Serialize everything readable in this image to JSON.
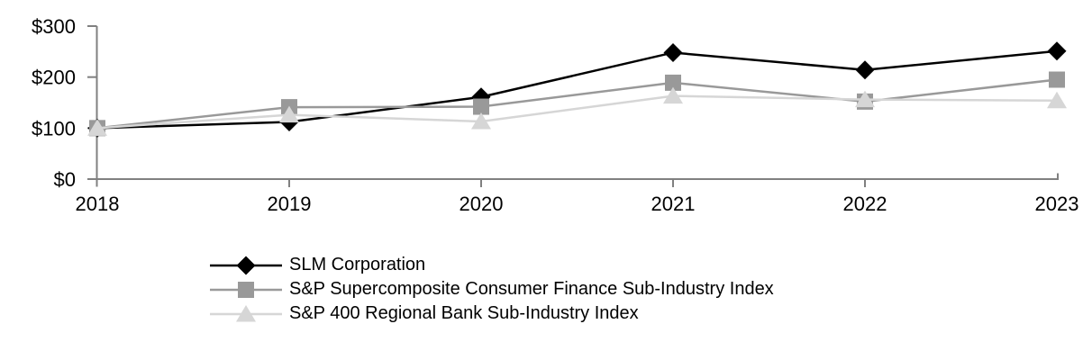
{
  "chart_data": {
    "type": "line",
    "title": "",
    "categories": [
      "2018",
      "2019",
      "2020",
      "2021",
      "2022",
      "2023"
    ],
    "series": [
      {
        "name": "SLM Corporation",
        "marker": "diamond",
        "color": "#000000",
        "values": [
          100,
          112,
          161,
          248,
          214,
          251
        ]
      },
      {
        "name": "S&P Supercomposite Consumer Finance Sub-Industry Index",
        "marker": "square",
        "color": "#999999",
        "values": [
          100,
          141,
          142,
          189,
          152,
          195
        ]
      },
      {
        "name": "S&P 400 Regional Bank Sub-Industry Index",
        "marker": "triangle",
        "color": "#d6d6d6",
        "values": [
          100,
          126,
          113,
          163,
          156,
          154
        ]
      }
    ],
    "y_axis": {
      "range": [
        0,
        300
      ],
      "tick_values": [
        0,
        100,
        200,
        300
      ],
      "tick_labels": [
        "$0",
        "$100",
        "$200",
        "$300"
      ]
    },
    "x_axis": {
      "tick_labels": [
        "2018",
        "2019",
        "2020",
        "2021",
        "2022",
        "2023"
      ]
    },
    "grid": false,
    "legend_position": "bottom-left",
    "axis_color": "#808080",
    "text_color": "#000000",
    "background": "#ffffff"
  }
}
